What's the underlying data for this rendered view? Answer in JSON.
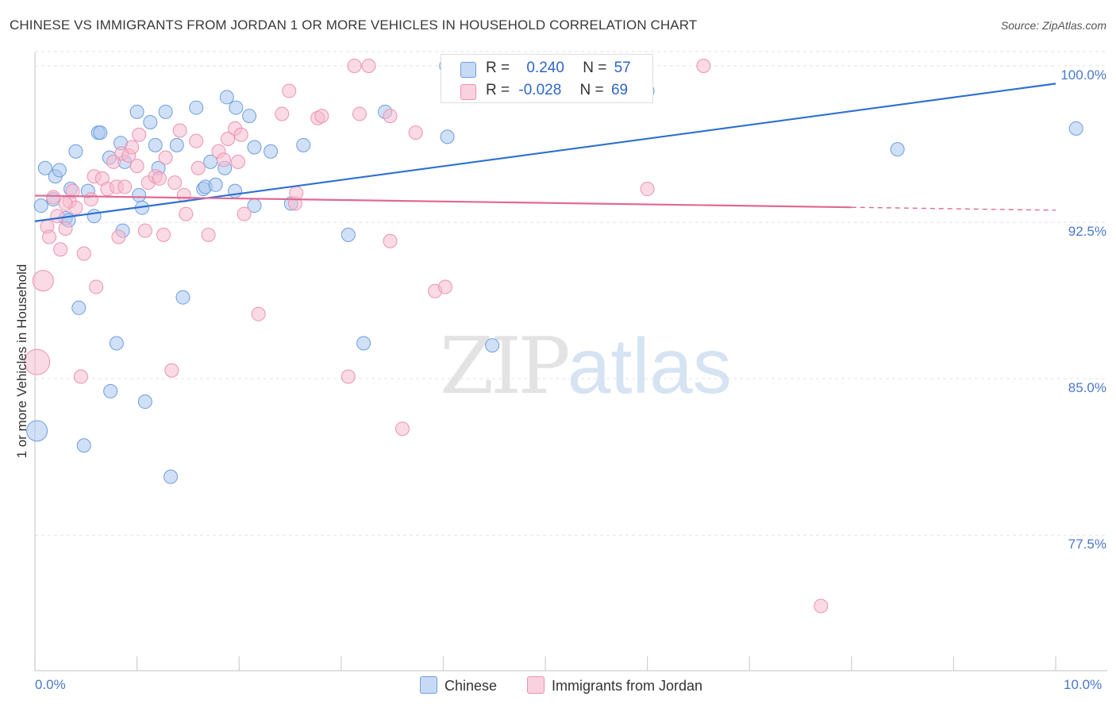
{
  "title": "CHINESE VS IMMIGRANTS FROM JORDAN 1 OR MORE VEHICLES IN HOUSEHOLD CORRELATION CHART",
  "source": "Source: ZipAtlas.com",
  "watermark": {
    "zip": "ZIP",
    "atlas": "atlas"
  },
  "legend": {
    "rows": [
      {
        "r_label": "R =",
        "r_value": "0.240",
        "n_label": "N =",
        "n_value": "57"
      },
      {
        "r_label": "R =",
        "r_value": "-0.028",
        "n_label": "N =",
        "n_value": "69"
      }
    ]
  },
  "colors": {
    "chinese_fill": "#a9c6ef",
    "chinese_stroke": "#6e9ee0",
    "chinese_line": "#2e6fd0",
    "jordan_fill": "#f6bccd",
    "jordan_stroke": "#ec93b1",
    "jordan_line": "#e06a93",
    "tick_text": "#4a78c8",
    "grid": "#e2e2e2"
  },
  "chart_data": {
    "type": "scatter",
    "title": "CHINESE VS IMMIGRANTS FROM JORDAN 1 OR MORE VEHICLES IN HOUSEHOLD CORRELATION CHART",
    "xlabel": "",
    "ylabel": "1 or more Vehicles in Household",
    "xlim": [
      0,
      10
    ],
    "ylim": [
      71.0,
      100.8
    ],
    "x_tick_labels": [
      {
        "x": 0,
        "label": "0.0%"
      },
      {
        "x": 10,
        "label": "10.0%"
      }
    ],
    "y_tick_labels": [
      {
        "y": 100.0,
        "label": "100.0%"
      },
      {
        "y": 92.5,
        "label": "92.5%"
      },
      {
        "y": 85.0,
        "label": "85.0%"
      },
      {
        "y": 77.5,
        "label": "77.5%"
      }
    ],
    "grid": true,
    "legend_position": "top-center",
    "series": [
      {
        "name": "Chinese",
        "r": 0.24,
        "n": 57,
        "trend": {
          "x0": 0.0,
          "y0": 92.55,
          "x1": 10.0,
          "y1": 99.15
        },
        "points": [
          [
            0.06,
            93.3
          ],
          [
            0.1,
            95.1
          ],
          [
            0.18,
            93.6
          ],
          [
            0.2,
            94.7
          ],
          [
            0.24,
            95.0
          ],
          [
            0.3,
            92.7
          ],
          [
            0.33,
            92.6
          ],
          [
            0.35,
            94.1
          ],
          [
            0.4,
            95.9
          ],
          [
            0.43,
            88.4
          ],
          [
            0.48,
            81.8
          ],
          [
            0.52,
            94.0
          ],
          [
            0.58,
            92.8
          ],
          [
            0.62,
            96.8
          ],
          [
            0.64,
            96.8
          ],
          [
            0.73,
            95.6
          ],
          [
            0.74,
            84.4
          ],
          [
            0.8,
            86.7
          ],
          [
            0.84,
            96.3
          ],
          [
            0.86,
            92.1
          ],
          [
            0.88,
            95.4
          ],
          [
            1.0,
            97.8
          ],
          [
            1.02,
            93.8
          ],
          [
            1.05,
            93.2
          ],
          [
            1.08,
            83.9
          ],
          [
            1.13,
            97.3
          ],
          [
            1.18,
            96.2
          ],
          [
            1.21,
            95.1
          ],
          [
            1.28,
            97.8
          ],
          [
            1.33,
            80.3
          ],
          [
            1.39,
            96.2
          ],
          [
            1.45,
            88.9
          ],
          [
            1.58,
            98.0
          ],
          [
            1.65,
            94.1
          ],
          [
            1.67,
            94.2
          ],
          [
            1.72,
            95.4
          ],
          [
            1.77,
            94.3
          ],
          [
            1.86,
            95.1
          ],
          [
            1.88,
            98.5
          ],
          [
            1.97,
            98.0
          ],
          [
            1.96,
            94.0
          ],
          [
            2.1,
            97.6
          ],
          [
            2.15,
            93.3
          ],
          [
            2.15,
            96.1
          ],
          [
            2.31,
            95.9
          ],
          [
            2.51,
            93.4
          ],
          [
            2.63,
            96.2
          ],
          [
            3.07,
            91.9
          ],
          [
            3.22,
            86.7
          ],
          [
            3.43,
            97.8
          ],
          [
            4.03,
            100.0
          ],
          [
            4.04,
            96.6
          ],
          [
            4.48,
            86.6
          ],
          [
            6.0,
            98.8
          ],
          [
            8.45,
            96.0
          ],
          [
            10.2,
            97.0
          ],
          [
            0.02,
            82.5
          ]
        ]
      },
      {
        "name": "Immigrants from Jordan",
        "r": -0.028,
        "n": 69,
        "trend": {
          "x0": 0.0,
          "y0": 93.78,
          "x1": 8.0,
          "y1": 93.22
        },
        "trend_dashed": {
          "x0": 8.0,
          "y0": 93.22,
          "x1": 10.0,
          "y1": 93.08
        },
        "points": [
          [
            0.02,
            85.8
          ],
          [
            0.08,
            89.7
          ],
          [
            0.12,
            92.3
          ],
          [
            0.14,
            91.8
          ],
          [
            0.18,
            93.7
          ],
          [
            0.22,
            92.8
          ],
          [
            0.25,
            91.2
          ],
          [
            0.3,
            92.2
          ],
          [
            0.34,
            93.5
          ],
          [
            0.37,
            94.0
          ],
          [
            0.4,
            93.2
          ],
          [
            0.45,
            85.1
          ],
          [
            0.48,
            91.0
          ],
          [
            0.55,
            93.6
          ],
          [
            0.58,
            94.7
          ],
          [
            0.6,
            89.4
          ],
          [
            0.66,
            94.6
          ],
          [
            0.71,
            94.1
          ],
          [
            0.77,
            95.4
          ],
          [
            0.8,
            94.2
          ],
          [
            0.82,
            91.8
          ],
          [
            0.85,
            95.8
          ],
          [
            0.88,
            94.2
          ],
          [
            0.92,
            95.7
          ],
          [
            0.95,
            96.1
          ],
          [
            1.0,
            95.2
          ],
          [
            1.02,
            96.7
          ],
          [
            1.08,
            92.1
          ],
          [
            1.11,
            94.4
          ],
          [
            1.18,
            94.7
          ],
          [
            1.22,
            94.6
          ],
          [
            1.26,
            91.9
          ],
          [
            1.28,
            95.6
          ],
          [
            1.34,
            85.4
          ],
          [
            1.37,
            94.4
          ],
          [
            1.42,
            96.9
          ],
          [
            1.46,
            93.8
          ],
          [
            1.48,
            92.9
          ],
          [
            1.58,
            96.4
          ],
          [
            1.6,
            95.1
          ],
          [
            1.7,
            91.9
          ],
          [
            1.8,
            95.9
          ],
          [
            1.85,
            95.5
          ],
          [
            1.89,
            96.5
          ],
          [
            1.96,
            97.0
          ],
          [
            1.99,
            95.4
          ],
          [
            2.02,
            96.7
          ],
          [
            2.05,
            92.9
          ],
          [
            2.19,
            88.1
          ],
          [
            2.42,
            97.7
          ],
          [
            2.49,
            98.8
          ],
          [
            2.55,
            93.4
          ],
          [
            2.56,
            93.9
          ],
          [
            2.77,
            97.5
          ],
          [
            2.81,
            97.6
          ],
          [
            3.07,
            85.1
          ],
          [
            3.13,
            100.0
          ],
          [
            3.18,
            97.7
          ],
          [
            3.27,
            100.0
          ],
          [
            3.48,
            97.6
          ],
          [
            3.48,
            91.6
          ],
          [
            3.6,
            82.6
          ],
          [
            3.73,
            96.8
          ],
          [
            3.92,
            89.2
          ],
          [
            4.02,
            89.4
          ],
          [
            6.0,
            94.1
          ],
          [
            6.55,
            100.0
          ],
          [
            7.7,
            74.1
          ],
          [
            0.3,
            93.4
          ]
        ]
      }
    ]
  },
  "bottom_legend": [
    {
      "label": "Chinese"
    },
    {
      "label": "Immigrants from Jordan"
    }
  ]
}
